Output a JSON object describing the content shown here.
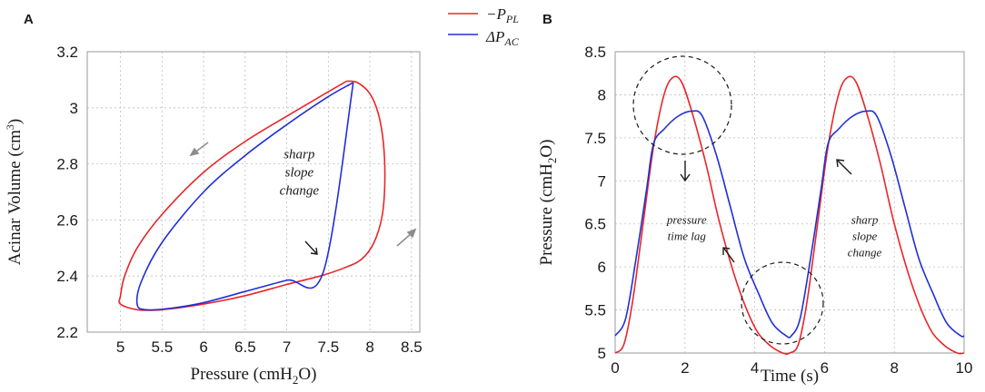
{
  "colors": {
    "red": "#e8262a",
    "blue": "#1f2fd8",
    "grid": "#bdbdbd",
    "arrow": "#8c8c8c",
    "text": "#1a1a1a"
  },
  "legend": [
    {
      "name": "−P",
      "sub": "PL",
      "color": "#e8262a"
    },
    {
      "name": "ΔP",
      "sub": "AC",
      "color": "#1f2fd8"
    }
  ],
  "chart_data": [
    {
      "panel": "A",
      "type": "line",
      "xlabel": {
        "main": "Pressure (cmH",
        "sub": "2",
        "tail": "O)"
      },
      "ylabel": {
        "main": "Acinar Volume (cm",
        "sup": "3",
        "tail": ")"
      },
      "xlim": [
        4.6,
        8.6
      ],
      "ylim": [
        2.2,
        3.2
      ],
      "xticks": [
        5,
        5.5,
        6,
        6.5,
        7,
        7.5,
        8,
        8.5
      ],
      "xtick_labels": [
        "5",
        "5.5",
        "6",
        "6.5",
        "7",
        "7.5",
        "8",
        "8.5"
      ],
      "yticks": [
        2.2,
        2.4,
        2.6,
        2.8,
        3.0,
        3.2
      ],
      "ytick_labels": [
        "2.2",
        "2.4",
        "2.6",
        "2.8",
        "3",
        "3.2"
      ],
      "grid": true,
      "annotations": [
        {
          "lines": [
            "sharp",
            "slope",
            "change"
          ],
          "x": 7.15,
          "y": 2.82
        }
      ],
      "series": [
        {
          "name": "−P_PL",
          "color": "#e8262a",
          "points": [
            [
              7.72,
              3.095
            ],
            [
              7.85,
              3.09
            ],
            [
              8.0,
              3.05
            ],
            [
              8.1,
              2.98
            ],
            [
              8.16,
              2.88
            ],
            [
              8.18,
              2.75
            ],
            [
              8.15,
              2.62
            ],
            [
              8.05,
              2.52
            ],
            [
              7.9,
              2.46
            ],
            [
              7.7,
              2.43
            ],
            [
              7.4,
              2.4
            ],
            [
              7.0,
              2.37
            ],
            [
              6.5,
              2.33
            ],
            [
              6.0,
              2.3
            ],
            [
              5.5,
              2.28
            ],
            [
              5.2,
              2.28
            ],
            [
              5.0,
              2.3
            ],
            [
              5.0,
              2.33
            ],
            [
              5.05,
              2.4
            ],
            [
              5.2,
              2.5
            ],
            [
              5.5,
              2.62
            ],
            [
              6.0,
              2.77
            ],
            [
              6.5,
              2.88
            ],
            [
              7.0,
              2.97
            ],
            [
              7.4,
              3.04
            ],
            [
              7.72,
              3.095
            ]
          ]
        },
        {
          "name": "ΔP_AC",
          "color": "#1f2fd8",
          "points": [
            [
              7.8,
              3.09
            ],
            [
              7.44,
              2.415
            ],
            [
              7.0,
              2.385
            ],
            [
              6.5,
              2.345
            ],
            [
              6.0,
              2.305
            ],
            [
              5.6,
              2.285
            ],
            [
              5.3,
              2.28
            ],
            [
              5.2,
              2.3
            ],
            [
              5.25,
              2.38
            ],
            [
              5.5,
              2.52
            ],
            [
              6.0,
              2.7
            ],
            [
              6.5,
              2.83
            ],
            [
              7.0,
              2.94
            ],
            [
              7.5,
              3.04
            ],
            [
              7.8,
              3.09
            ]
          ]
        }
      ]
    },
    {
      "panel": "B",
      "type": "line",
      "xlabel": {
        "main": "Time (s)"
      },
      "ylabel": {
        "main": "Pressure (cmH",
        "sub": "2",
        "tail": "O)"
      },
      "xlim": [
        0,
        10
      ],
      "ylim": [
        5,
        8.5
      ],
      "xticks": [
        0,
        2,
        4,
        6,
        8,
        10
      ],
      "xtick_labels": [
        "0",
        "2",
        "4",
        "6",
        "8",
        "10"
      ],
      "yticks": [
        5,
        5.5,
        6,
        6.5,
        7,
        7.5,
        8,
        8.5
      ],
      "ytick_labels": [
        "5",
        "5.5",
        "6",
        "6.5",
        "7",
        "7.5",
        "8",
        "8.5"
      ],
      "grid": true,
      "annotations": [
        {
          "lines": [
            "pressure",
            "time lag"
          ],
          "x": 2.05,
          "y": 6.5
        },
        {
          "lines": [
            "sharp",
            "slope",
            "change"
          ],
          "x": 7.15,
          "y": 6.5
        }
      ],
      "series": [
        {
          "name": "−P_PL",
          "color": "#e8262a",
          "points": [
            [
              0,
              5.0
            ],
            [
              0.25,
              5.1
            ],
            [
              0.5,
              5.6
            ],
            [
              0.8,
              6.5
            ],
            [
              1.1,
              7.4
            ],
            [
              1.4,
              8.0
            ],
            [
              1.65,
              8.2
            ],
            [
              1.9,
              8.15
            ],
            [
              2.2,
              7.8
            ],
            [
              2.6,
              7.2
            ],
            [
              3.0,
              6.5
            ],
            [
              3.5,
              5.8
            ],
            [
              4.0,
              5.3
            ],
            [
              4.4,
              5.1
            ],
            [
              4.8,
              5.0
            ],
            [
              5.0,
              5.0
            ],
            [
              5.25,
              5.1
            ],
            [
              5.5,
              5.6
            ],
            [
              5.8,
              6.5
            ],
            [
              6.1,
              7.4
            ],
            [
              6.4,
              8.0
            ],
            [
              6.65,
              8.2
            ],
            [
              6.9,
              8.15
            ],
            [
              7.2,
              7.8
            ],
            [
              7.6,
              7.2
            ],
            [
              8.0,
              6.5
            ],
            [
              8.5,
              5.8
            ],
            [
              9.0,
              5.3
            ],
            [
              9.4,
              5.1
            ],
            [
              9.8,
              5.0
            ],
            [
              10,
              5.0
            ]
          ]
        },
        {
          "name": "ΔP_AC",
          "color": "#1f2fd8",
          "points": [
            [
              0,
              5.2
            ],
            [
              0.3,
              5.4
            ],
            [
              0.6,
              6.1
            ],
            [
              0.9,
              6.9
            ],
            [
              1.1,
              7.43
            ],
            [
              1.4,
              7.6
            ],
            [
              1.8,
              7.75
            ],
            [
              2.2,
              7.81
            ],
            [
              2.5,
              7.75
            ],
            [
              2.9,
              7.3
            ],
            [
              3.3,
              6.7
            ],
            [
              3.7,
              6.1
            ],
            [
              4.1,
              5.7
            ],
            [
              4.5,
              5.35
            ],
            [
              4.9,
              5.2
            ],
            [
              5.05,
              5.2
            ],
            [
              5.3,
              5.4
            ],
            [
              5.6,
              6.1
            ],
            [
              5.9,
              6.9
            ],
            [
              6.1,
              7.43
            ],
            [
              6.4,
              7.6
            ],
            [
              6.8,
              7.75
            ],
            [
              7.2,
              7.81
            ],
            [
              7.5,
              7.75
            ],
            [
              7.9,
              7.3
            ],
            [
              8.3,
              6.7
            ],
            [
              8.7,
              6.1
            ],
            [
              9.1,
              5.7
            ],
            [
              9.5,
              5.35
            ],
            [
              9.9,
              5.2
            ],
            [
              10,
              5.2
            ]
          ]
        }
      ]
    }
  ]
}
